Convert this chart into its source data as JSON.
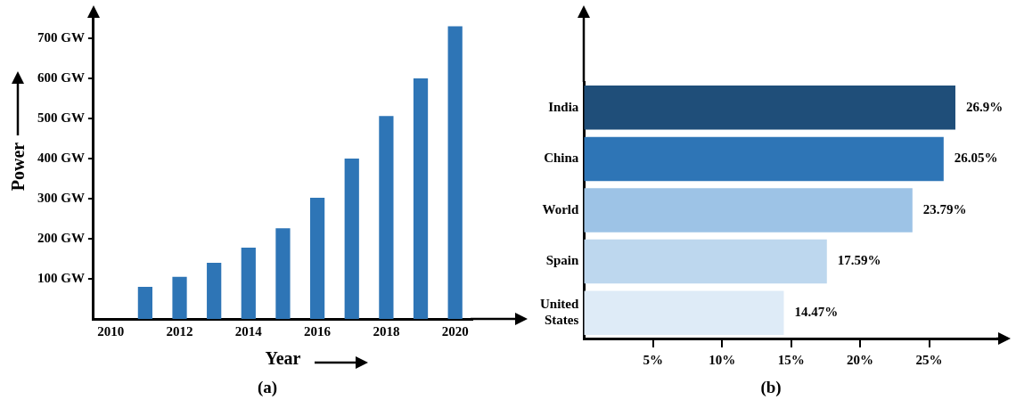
{
  "chart_data": [
    {
      "type": "bar",
      "categories": [
        "2010",
        null,
        "2012",
        null,
        "2014",
        null,
        "2016",
        null,
        "2018",
        null,
        "2020"
      ],
      "values": [
        null,
        80,
        105,
        140,
        178,
        226,
        302,
        400,
        506,
        600,
        730
      ],
      "color": "#2e75b6",
      "ylim": [
        0,
        760
      ],
      "yticks": [
        {
          "value": 100,
          "label": "100 GW"
        },
        {
          "value": 200,
          "label": "200 GW"
        },
        {
          "value": 300,
          "label": "300 GW"
        },
        {
          "value": 400,
          "label": "400 GW"
        },
        {
          "value": 500,
          "label": "500 GW"
        },
        {
          "value": 600,
          "label": "600 GW"
        },
        {
          "value": 700,
          "label": "700 GW"
        }
      ],
      "xlabel": "Year",
      "ylabel": "Power",
      "annotations": [
        "(a)"
      ]
    },
    {
      "type": "bar",
      "orientation": "horizontal",
      "categories": [
        "India",
        "China",
        "World",
        "Spain",
        "United States"
      ],
      "values": [
        26.9,
        26.05,
        23.79,
        17.59,
        14.47
      ],
      "colors": [
        "#1f4e79",
        "#2e75b6",
        "#9dc3e6",
        "#bdd7ee",
        "#deebf7"
      ],
      "value_labels": [
        "26.9%",
        "26.05%",
        "23.79%",
        "17.59%",
        "14.47%"
      ],
      "xlim": [
        0,
        30
      ],
      "xticks": [
        {
          "value": 5,
          "label": "5%"
        },
        {
          "value": 10,
          "label": "10%"
        },
        {
          "value": 15,
          "label": "15%"
        },
        {
          "value": 20,
          "label": "20%"
        },
        {
          "value": 25,
          "label": "25%"
        }
      ],
      "annotations": [
        "(b)"
      ]
    }
  ]
}
